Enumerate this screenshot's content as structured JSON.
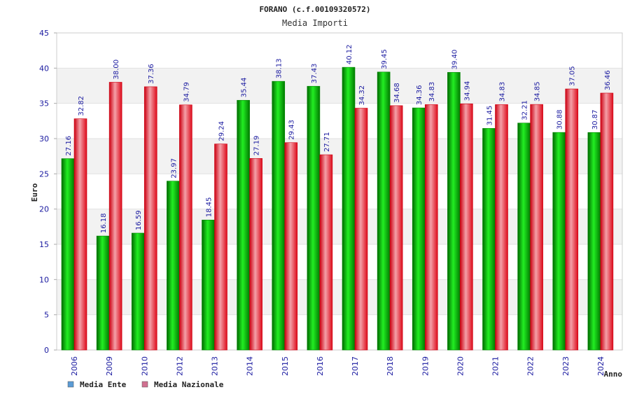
{
  "chart_data": {
    "type": "bar",
    "title": "FORANO (c.f.00109320572)",
    "subtitle": "Media Importi",
    "xlabel": "Anno",
    "ylabel": "Euro",
    "ylim": [
      0,
      45
    ],
    "yticks": [
      0,
      5,
      10,
      15,
      20,
      25,
      30,
      35,
      40,
      45
    ],
    "categories": [
      "2006",
      "2009",
      "2010",
      "2012",
      "2013",
      "2014",
      "2015",
      "2016",
      "2017",
      "2018",
      "2019",
      "2020",
      "2021",
      "2022",
      "2023",
      "2024"
    ],
    "series": [
      {
        "name": "Media Ente",
        "color": "#00aa00",
        "legend_color": "#5b9bd5",
        "values": [
          27.16,
          16.18,
          16.59,
          23.97,
          18.45,
          35.44,
          38.13,
          37.43,
          40.12,
          39.45,
          34.36,
          39.4,
          31.45,
          32.21,
          30.88,
          30.87
        ],
        "labels": [
          "27.16",
          "16.18",
          "16.59",
          "23.97",
          "18.45",
          "35.44",
          "38.13",
          "37.43",
          "40.12",
          "39.45",
          "34.36",
          "39.40",
          "31.45",
          "32.21",
          "30.88",
          "30.87"
        ]
      },
      {
        "name": "Media Nazionale",
        "color": "#dd1122",
        "legend_color": "#d07090",
        "values": [
          32.82,
          38.0,
          37.36,
          34.79,
          29.24,
          27.19,
          29.43,
          27.71,
          34.32,
          34.68,
          34.83,
          34.94,
          34.83,
          34.85,
          37.05,
          36.46
        ],
        "labels": [
          "32.82",
          "38.00",
          "37.36",
          "34.79",
          "29.24",
          "27.19",
          "29.43",
          "27.71",
          "34.32",
          "34.68",
          "34.83",
          "34.94",
          "34.83",
          "34.85",
          "37.05",
          "36.46"
        ]
      }
    ],
    "grid": true,
    "legend": "bottom-left"
  }
}
